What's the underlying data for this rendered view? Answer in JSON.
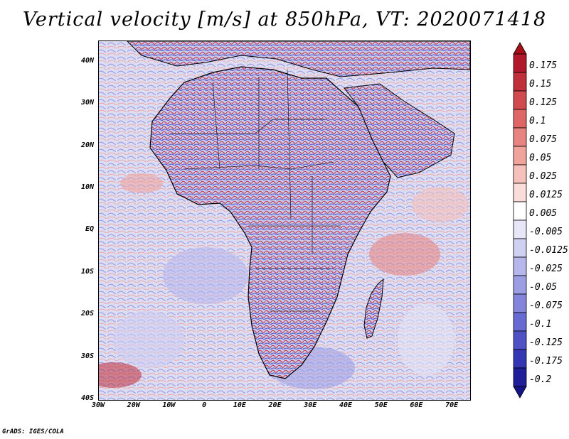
{
  "title": "Vertical velocity [m/s] at 850hPa, VT: 2020071418",
  "footer": "GrADS: IGES/COLA",
  "lat_ticks": [
    {
      "label": "40N",
      "lat": 40
    },
    {
      "label": "30N",
      "lat": 30
    },
    {
      "label": "20N",
      "lat": 20
    },
    {
      "label": "10N",
      "lat": 10
    },
    {
      "label": "EQ",
      "lat": 0
    },
    {
      "label": "10S",
      "lat": -10
    },
    {
      "label": "20S",
      "lat": -20
    },
    {
      "label": "30S",
      "lat": -30
    },
    {
      "label": "40S",
      "lat": -40
    }
  ],
  "lon_ticks": [
    {
      "label": "30W",
      "lon": -30
    },
    {
      "label": "20W",
      "lon": -20
    },
    {
      "label": "10W",
      "lon": -10
    },
    {
      "label": "0",
      "lon": 0
    },
    {
      "label": "10E",
      "lon": 10
    },
    {
      "label": "20E",
      "lon": 20
    },
    {
      "label": "30E",
      "lon": 30
    },
    {
      "label": "40E",
      "lon": 40
    },
    {
      "label": "50E",
      "lon": 50
    },
    {
      "label": "60E",
      "lon": 60
    },
    {
      "label": "70E",
      "lon": 70
    }
  ],
  "extent": {
    "lon_min": -30,
    "lon_max": 75,
    "lat_min": -40,
    "lat_max": 45
  },
  "colorbar": [
    {
      "label": "0.175",
      "color": "#b2182b"
    },
    {
      "label": "0.15",
      "color": "#c0303a"
    },
    {
      "label": "0.125",
      "color": "#d04a4e"
    },
    {
      "label": "0.1",
      "color": "#de6666"
    },
    {
      "label": "0.075",
      "color": "#e8847f"
    },
    {
      "label": "0.05",
      "color": "#f0a39b"
    },
    {
      "label": "0.025",
      "color": "#f6c1ba"
    },
    {
      "label": "0.0125",
      "color": "#fadcd8"
    },
    {
      "label": "0.005",
      "color": "#ffffff"
    },
    {
      "label": "-0.005",
      "color": "#e6e6f7"
    },
    {
      "label": "-0.0125",
      "color": "#cfd0f2"
    },
    {
      "label": "-0.025",
      "color": "#b6b7ec"
    },
    {
      "label": "-0.05",
      "color": "#9c9ee4"
    },
    {
      "label": "-0.075",
      "color": "#8285db"
    },
    {
      "label": "-0.1",
      "color": "#676bd1"
    },
    {
      "label": "-0.125",
      "color": "#4f52c4"
    },
    {
      "label": "-0.175",
      "color": "#3436b3"
    },
    {
      "label": "-0.2",
      "color": "#1f1f9a"
    }
  ],
  "cb_top_color": "#a50f15",
  "cb_bottom_color": "#14148a"
}
